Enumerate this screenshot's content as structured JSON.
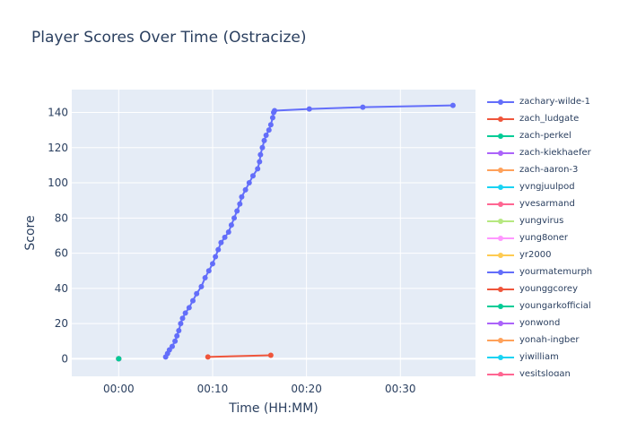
{
  "chart_data": {
    "type": "line",
    "title": "Player Scores Over Time (Ostracize)",
    "xlabel": "Time (HH:MM)",
    "ylabel": "Score",
    "x_unit": "minutes",
    "xlim": [
      -5,
      38
    ],
    "ylim": [
      -10,
      153
    ],
    "x_ticks": [
      {
        "value": 0,
        "label": "00:00"
      },
      {
        "value": 10,
        "label": "00:10"
      },
      {
        "value": 20,
        "label": "00:20"
      },
      {
        "value": 30,
        "label": "00:30"
      }
    ],
    "y_ticks": [
      0,
      20,
      40,
      60,
      80,
      100,
      120,
      140
    ],
    "grid": true,
    "legend_position": "right",
    "series": [
      {
        "name": "zachary-wilde-1",
        "color": "#636efa",
        "points": [
          [
            5.0,
            1
          ],
          [
            5.2,
            3
          ],
          [
            5.4,
            5
          ],
          [
            5.7,
            7
          ],
          [
            6.0,
            10
          ],
          [
            6.2,
            13
          ],
          [
            6.4,
            16
          ],
          [
            6.6,
            20
          ],
          [
            6.8,
            23
          ],
          [
            7.1,
            26
          ],
          [
            7.5,
            29
          ],
          [
            7.9,
            33
          ],
          [
            8.3,
            37
          ],
          [
            8.8,
            41
          ],
          [
            9.2,
            46
          ],
          [
            9.6,
            50
          ],
          [
            10.0,
            54
          ],
          [
            10.3,
            58
          ],
          [
            10.6,
            62
          ],
          [
            10.9,
            66
          ],
          [
            11.3,
            69
          ],
          [
            11.7,
            72
          ],
          [
            12.0,
            76
          ],
          [
            12.3,
            80
          ],
          [
            12.6,
            84
          ],
          [
            12.9,
            88
          ],
          [
            13.1,
            92
          ],
          [
            13.5,
            96
          ],
          [
            13.9,
            100
          ],
          [
            14.3,
            104
          ],
          [
            14.8,
            108
          ],
          [
            15.0,
            112
          ],
          [
            15.1,
            116
          ],
          [
            15.3,
            120
          ],
          [
            15.5,
            124
          ],
          [
            15.7,
            127
          ],
          [
            16.0,
            130
          ],
          [
            16.2,
            133
          ],
          [
            16.4,
            137
          ],
          [
            16.5,
            140
          ],
          [
            16.6,
            141
          ],
          [
            20.3,
            142
          ],
          [
            26.0,
            143
          ],
          [
            35.6,
            144
          ]
        ]
      },
      {
        "name": "zach_ludgate",
        "color": "#EF553B",
        "points": [
          [
            9.5,
            1
          ],
          [
            16.2,
            2
          ]
        ]
      },
      {
        "name": "zach-perkel",
        "color": "#00cc96",
        "points": [
          [
            0,
            0
          ]
        ]
      },
      {
        "name": "zach-kiekhaefer",
        "color": "#ab63fa",
        "points": [
          [
            0,
            0
          ]
        ]
      },
      {
        "name": "zach-aaron-3",
        "color": "#FFA15A",
        "points": [
          [
            0,
            0
          ]
        ]
      },
      {
        "name": "yvngjuulpod",
        "color": "#19d3f3",
        "points": [
          [
            0,
            0
          ]
        ]
      },
      {
        "name": "yvesarmand",
        "color": "#FF6692",
        "points": [
          [
            0,
            0
          ]
        ]
      },
      {
        "name": "yungvirus",
        "color": "#B6E880",
        "points": [
          [
            0,
            0
          ]
        ]
      },
      {
        "name": "yung8oner",
        "color": "#FF97FF",
        "points": [
          [
            0,
            0
          ]
        ]
      },
      {
        "name": "yr2000",
        "color": "#FECB52",
        "points": [
          [
            0,
            0
          ]
        ]
      },
      {
        "name": "yourmatemurph",
        "color": "#636efa",
        "points": [
          [
            0,
            0
          ]
        ]
      },
      {
        "name": "younggcorey",
        "color": "#EF553B",
        "points": [
          [
            0,
            0
          ]
        ]
      },
      {
        "name": "youngarkofficial",
        "color": "#00cc96",
        "points": [
          [
            0,
            0
          ]
        ]
      },
      {
        "name": "yonwond",
        "color": "#ab63fa",
        "points": [
          [
            0,
            0
          ]
        ]
      },
      {
        "name": "yonah-ingber",
        "color": "#FFA15A",
        "points": [
          [
            0,
            0
          ]
        ]
      },
      {
        "name": "yiwilliam",
        "color": "#19d3f3",
        "points": [
          [
            0,
            0
          ]
        ]
      },
      {
        "name": "yesitslogan",
        "color": "#FF6692",
        "points": [
          [
            0,
            0
          ]
        ]
      }
    ]
  }
}
